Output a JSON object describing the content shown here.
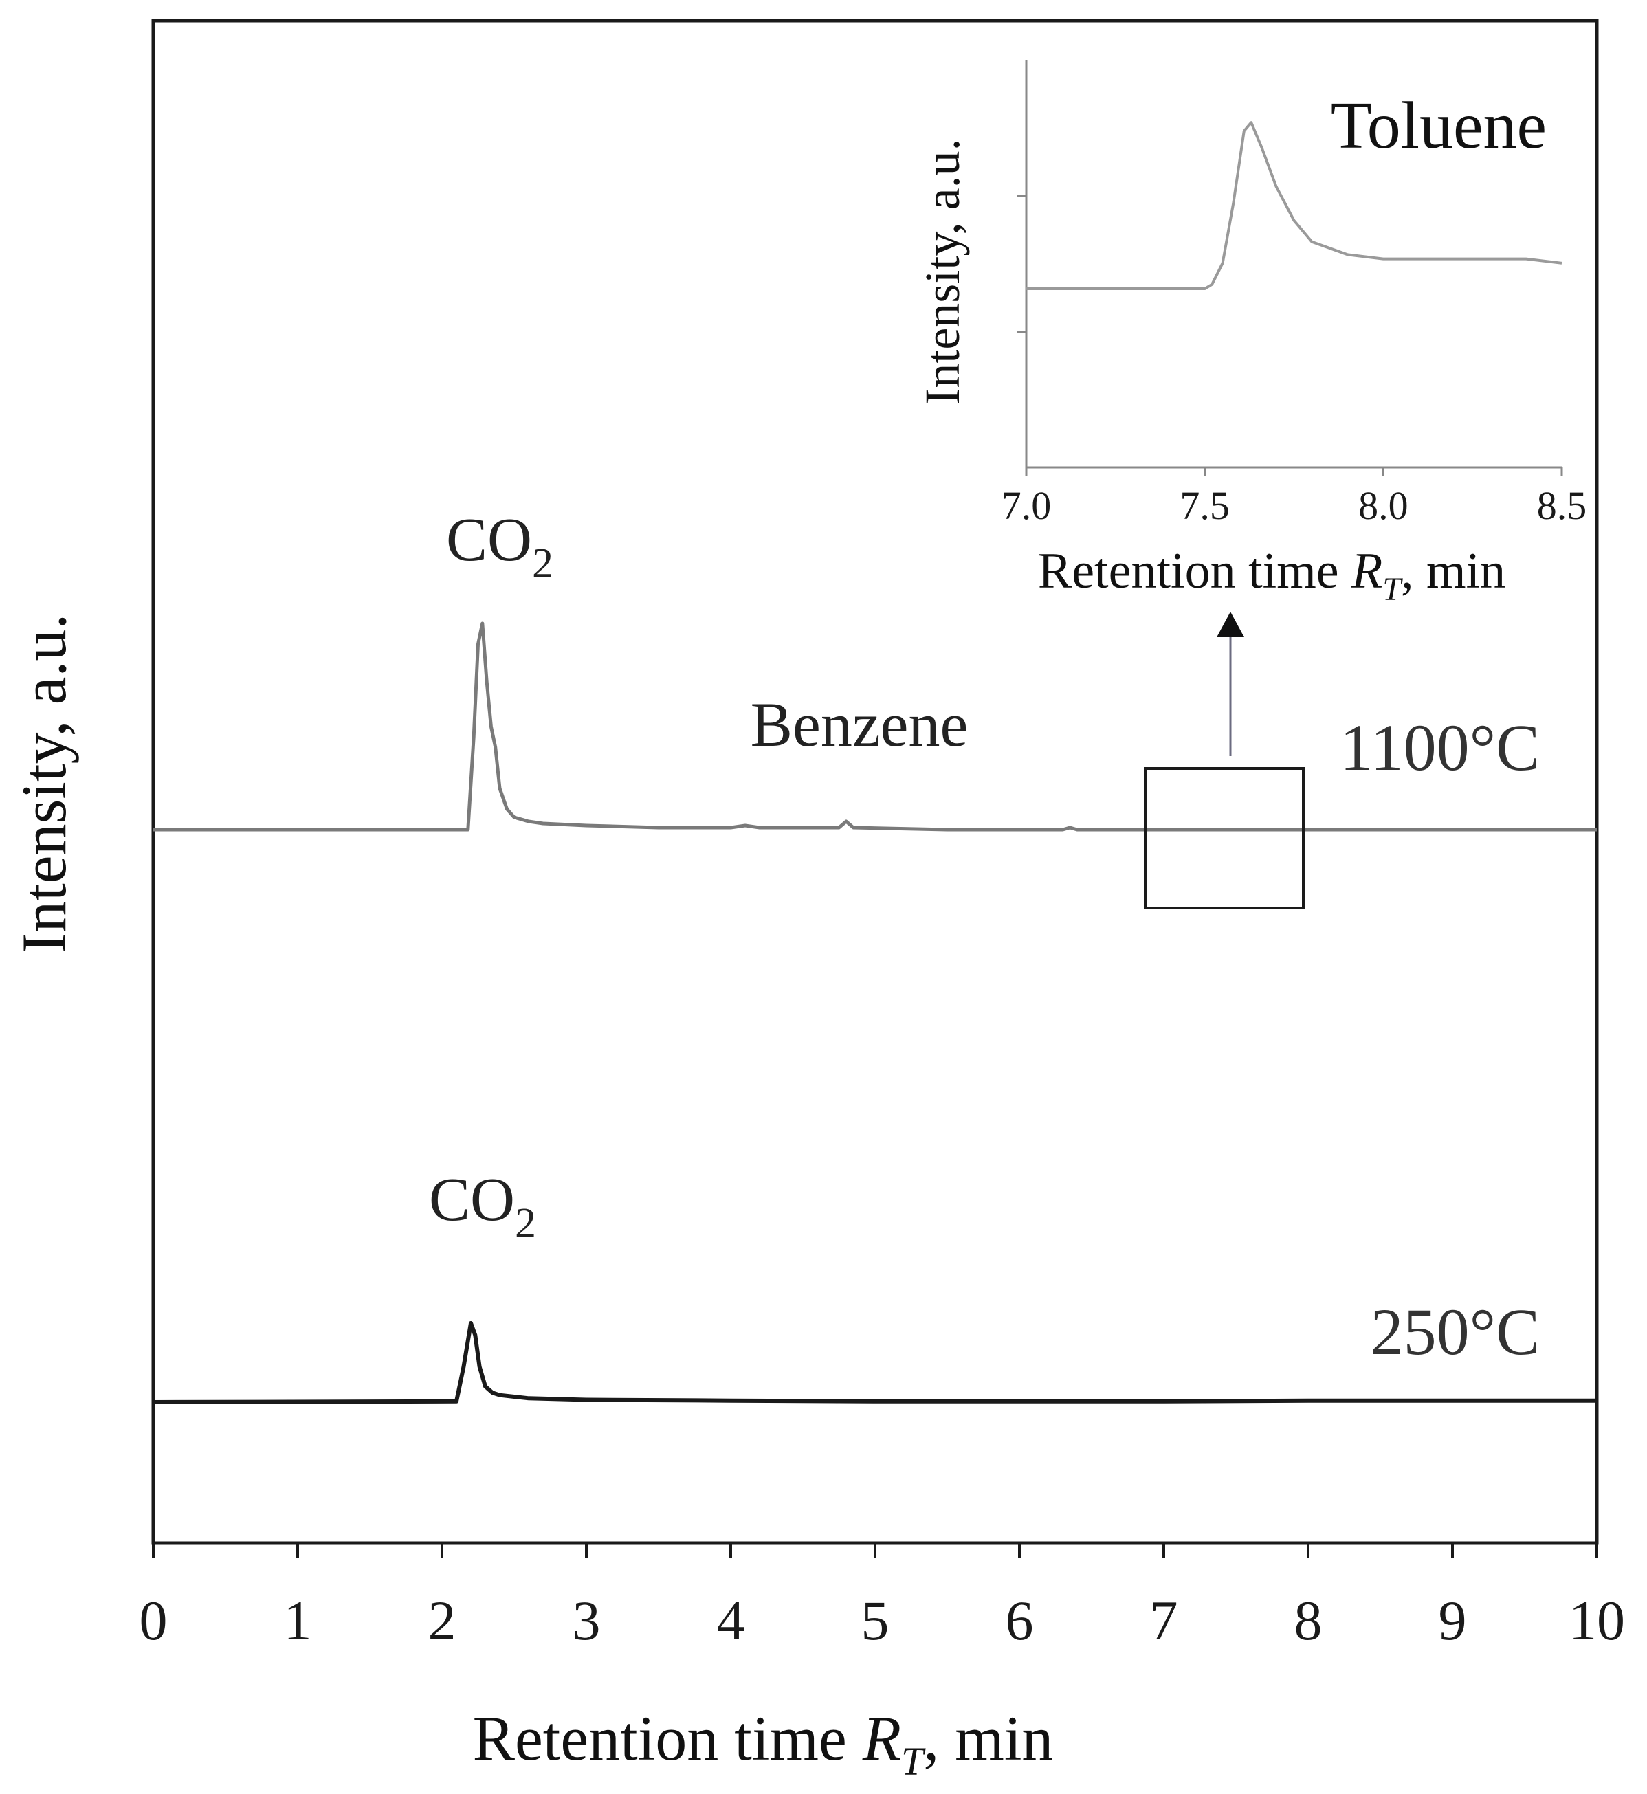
{
  "chart_data": [
    {
      "type": "line",
      "xlabel_main": "Retention time ",
      "xlabel_sym": "R",
      "xlabel_sub": "T",
      "xlabel_unit": ", min",
      "ylabel": "Intensity, a.u.",
      "xlim": [
        0,
        10
      ],
      "xticks": [
        "0",
        "1",
        "2",
        "3",
        "4",
        "5",
        "6",
        "7",
        "8",
        "9",
        "10"
      ],
      "series": [
        {
          "name": "1100°C",
          "color": "#7a7a7a",
          "x": [
            0,
            2.18,
            2.22,
            2.25,
            2.28,
            2.31,
            2.34,
            2.37,
            2.4,
            2.45,
            2.5,
            2.6,
            2.7,
            3.0,
            3.5,
            4.0,
            4.1,
            4.2,
            4.75,
            4.8,
            4.85,
            5.5,
            6.3,
            6.35,
            6.4,
            7.0,
            8.0,
            9.0,
            10.0
          ],
          "y": [
            0,
            0,
            0.45,
            0.9,
            1.0,
            0.72,
            0.5,
            0.4,
            0.2,
            0.1,
            0.06,
            0.04,
            0.03,
            0.02,
            0.01,
            0.01,
            0.02,
            0.01,
            0.01,
            0.04,
            0.01,
            0.0,
            0.0,
            0.01,
            0.0,
            0.0,
            0.0,
            0.0,
            0.0
          ],
          "peak_labels": [
            {
              "text": "CO",
              "sub": "2",
              "x": 2.4
            },
            {
              "text": "Benzene",
              "x": 4.8
            }
          ]
        },
        {
          "name": "250°C",
          "color": "#1a1a1a",
          "x": [
            0,
            2.1,
            2.15,
            2.2,
            2.23,
            2.26,
            2.3,
            2.35,
            2.4,
            2.5,
            2.6,
            3.0,
            4.0,
            5.0,
            6.0,
            7.0,
            8.0,
            9.0,
            10.0
          ],
          "y": [
            0,
            0.01,
            0.45,
            1.0,
            0.85,
            0.45,
            0.2,
            0.12,
            0.09,
            0.07,
            0.05,
            0.03,
            0.02,
            0.01,
            0.01,
            0.01,
            0.02,
            0.02,
            0.02
          ],
          "peak_labels": [
            {
              "text": "CO",
              "sub": "2",
              "x": 2.4
            }
          ]
        }
      ],
      "zoom_box": {
        "x_range": [
          6.9,
          8.0
        ]
      }
    },
    {
      "type": "line",
      "inset": true,
      "title": "Toluene",
      "xlabel_main": "Retention time ",
      "xlabel_sym": "R",
      "xlabel_sub": "T",
      "xlabel_unit": ", min",
      "ylabel": "Intensity, a.u.",
      "xlim": [
        7.0,
        8.5
      ],
      "xticks": [
        "7.0",
        "7.5",
        "8.0",
        "8.5"
      ],
      "series": [
        {
          "name": "Toluene",
          "color": "#9a9a9a",
          "x": [
            7.0,
            7.5,
            7.52,
            7.55,
            7.58,
            7.61,
            7.63,
            7.66,
            7.7,
            7.75,
            7.8,
            7.9,
            8.0,
            8.2,
            8.4,
            8.5
          ],
          "y": [
            0.0,
            0.0,
            0.01,
            0.06,
            0.2,
            0.37,
            0.39,
            0.33,
            0.24,
            0.16,
            0.11,
            0.08,
            0.07,
            0.07,
            0.07,
            0.06
          ]
        }
      ]
    }
  ]
}
